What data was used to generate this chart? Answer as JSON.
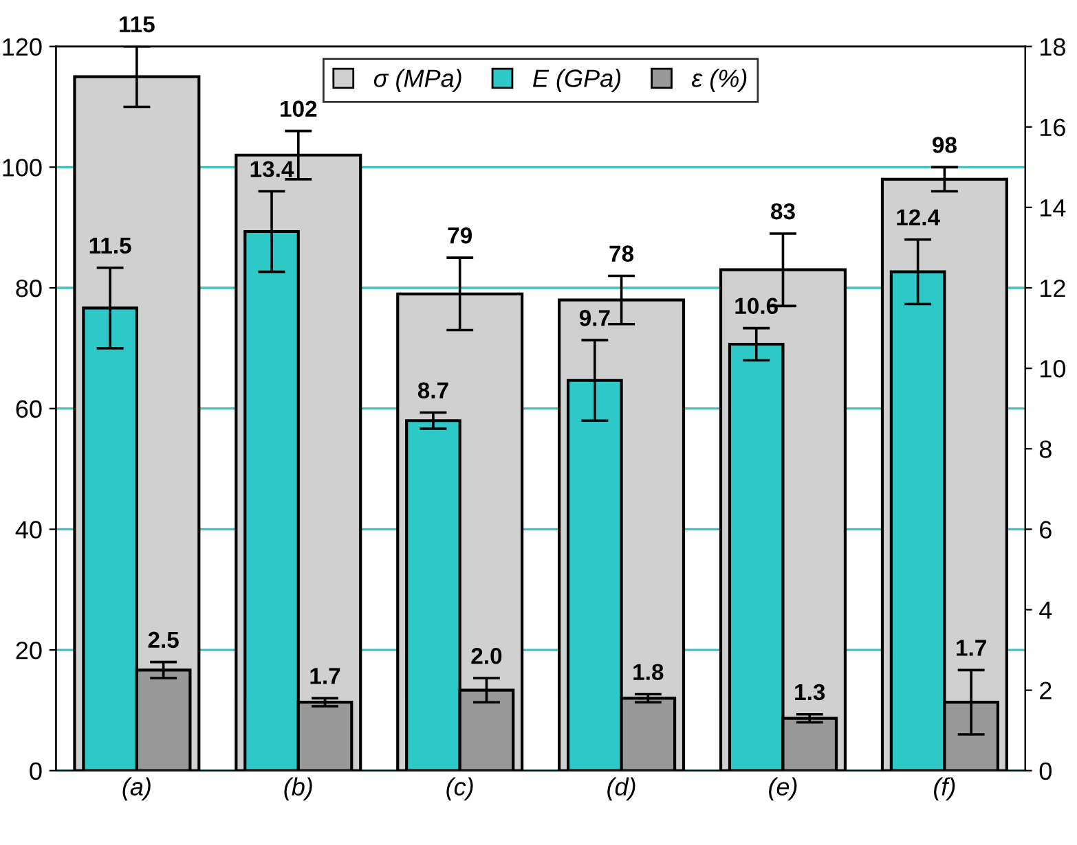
{
  "chart_data": {
    "type": "bar",
    "categories": [
      "(a)",
      "(b)",
      "(c)",
      "(d)",
      "(e)",
      "(f)"
    ],
    "series": [
      {
        "name": "σ (MPa)",
        "color": "#d0d0d0",
        "values": [
          115,
          102,
          79,
          78,
          83,
          98
        ],
        "errors": [
          5,
          4,
          6,
          4,
          6,
          2
        ],
        "value_labels": [
          "115",
          "102",
          "79",
          "78",
          "83",
          "98"
        ]
      },
      {
        "name": "E (GPa)",
        "color": "#2ec8c8",
        "axis": "y2",
        "values": [
          11.5,
          13.4,
          8.7,
          9.7,
          10.6,
          12.4
        ],
        "errors": [
          1.0,
          1.0,
          0.2,
          1.0,
          0.4,
          0.8
        ],
        "value_labels": [
          "11.5",
          "13.4",
          "8.7",
          "9.7",
          "10.6",
          "12.4"
        ]
      },
      {
        "name": "ε (%)",
        "color": "#999999",
        "axis": "y2",
        "values": [
          2.5,
          1.7,
          2.0,
          1.8,
          1.3,
          1.7
        ],
        "errors": [
          0.2,
          0.1,
          0.3,
          0.1,
          0.1,
          0.8
        ],
        "value_labels": [
          "2.5",
          "1.7",
          "2.0",
          "1.8",
          "1.3",
          "1.7"
        ]
      }
    ],
    "ylim": [
      0,
      120
    ],
    "yticks": [
      0,
      20,
      40,
      60,
      80,
      100,
      120
    ],
    "y2lim": [
      0,
      18
    ],
    "y2ticks": [
      0,
      2,
      4,
      6,
      8,
      10,
      12,
      14,
      16,
      18
    ],
    "grid": "y",
    "legend": "top"
  }
}
